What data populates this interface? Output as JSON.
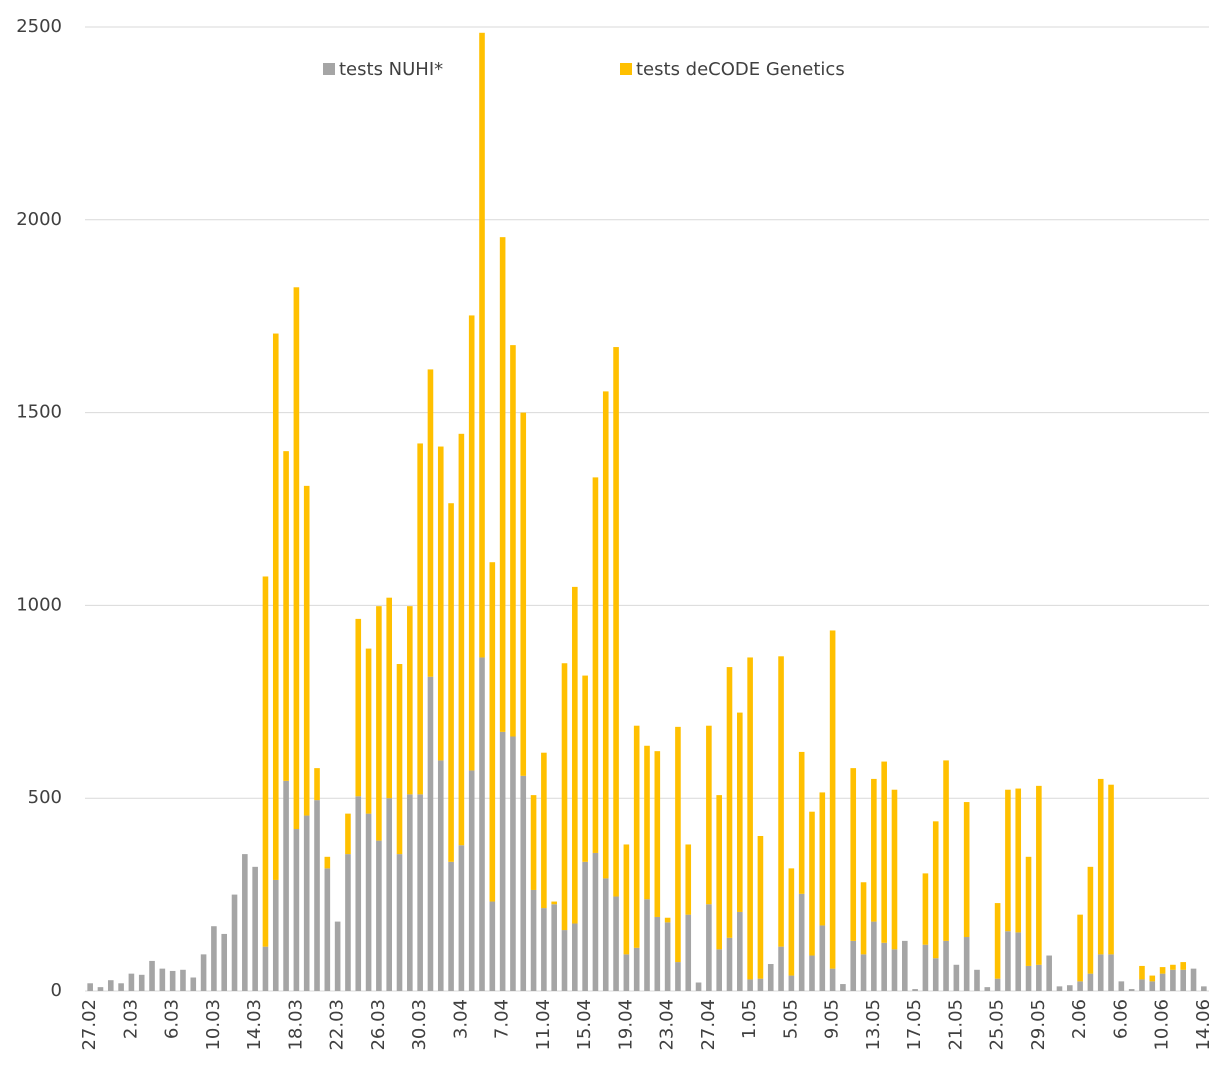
{
  "chart_data": {
    "type": "stacked_bar",
    "categories": [
      "27.02",
      null,
      null,
      null,
      "2.03",
      null,
      null,
      null,
      "6.03",
      null,
      null,
      null,
      "10.03",
      null,
      null,
      null,
      "14.03",
      null,
      null,
      null,
      "18.03",
      null,
      null,
      null,
      "22.03",
      null,
      null,
      null,
      "26.03",
      null,
      null,
      null,
      "30.03",
      null,
      null,
      null,
      "3.04",
      null,
      null,
      null,
      "7.04",
      null,
      null,
      null,
      "11.04",
      null,
      null,
      null,
      "15.04",
      null,
      null,
      null,
      "19.04",
      null,
      null,
      null,
      "23.04",
      null,
      null,
      null,
      "27.04",
      null,
      null,
      null,
      "1.05",
      null,
      null,
      null,
      "5.05",
      null,
      null,
      null,
      "9.05",
      null,
      null,
      null,
      "13.05",
      null,
      null,
      null,
      "17.05",
      null,
      null,
      null,
      "21.05",
      null,
      null,
      null,
      "25.05",
      null,
      null,
      null,
      "29.05",
      null,
      null,
      null,
      "2.06",
      null,
      null,
      null,
      "6.06",
      null,
      null,
      null,
      "10.06",
      null,
      null,
      null,
      "14.06"
    ],
    "series": [
      {
        "name": "tests NUHI*",
        "color": "#a5a5a5",
        "values": [
          20,
          10,
          28,
          20,
          45,
          42,
          78,
          58,
          52,
          55,
          35,
          95,
          168,
          148,
          250,
          355,
          322,
          115,
          288,
          545,
          420,
          455,
          495,
          318,
          180,
          355,
          505,
          460,
          390,
          500,
          355,
          510,
          510,
          815,
          598,
          335,
          378,
          572,
          865,
          232,
          672,
          660,
          558,
          262,
          215,
          225,
          158,
          175,
          335,
          358,
          292,
          245,
          95,
          112,
          238,
          192,
          178,
          75,
          198,
          22,
          225,
          108,
          138,
          205,
          30,
          32,
          70,
          115,
          40,
          252,
          92,
          170,
          58,
          18,
          130,
          95,
          180,
          125,
          108,
          130,
          5,
          120,
          85,
          130,
          68,
          140,
          55,
          10,
          32,
          155,
          152,
          65,
          68,
          92,
          12,
          15,
          25,
          45,
          95,
          95,
          25,
          5,
          30,
          25,
          45,
          55,
          55,
          58,
          12
        ]
      },
      {
        "name": "tests deCODE Genetics",
        "color": "#ffc000",
        "values": [
          0,
          0,
          0,
          0,
          0,
          0,
          0,
          0,
          0,
          0,
          0,
          0,
          0,
          0,
          0,
          0,
          0,
          960,
          1417,
          855,
          1405,
          855,
          83,
          30,
          0,
          105,
          460,
          428,
          608,
          520,
          493,
          488,
          910,
          797,
          814,
          930,
          1067,
          1180,
          1620,
          880,
          1283,
          1015,
          942,
          246,
          403,
          7,
          692,
          873,
          483,
          974,
          1263,
          1425,
          285,
          576,
          398,
          430,
          12,
          610,
          182,
          0,
          463,
          400,
          702,
          517,
          835,
          370,
          0,
          753,
          278,
          368,
          373,
          345,
          877,
          0,
          448,
          187,
          370,
          470,
          414,
          0,
          0,
          185,
          355,
          468,
          0,
          350,
          0,
          0,
          196,
          367,
          373,
          283,
          464,
          0,
          0,
          0,
          173,
          277,
          455,
          440,
          0,
          0,
          35,
          15,
          17,
          13,
          20,
          0,
          0
        ]
      }
    ],
    "ylim": [
      0,
      2500
    ],
    "yticks": [
      0,
      500,
      1000,
      1500,
      2000,
      2500
    ],
    "grid": true
  }
}
